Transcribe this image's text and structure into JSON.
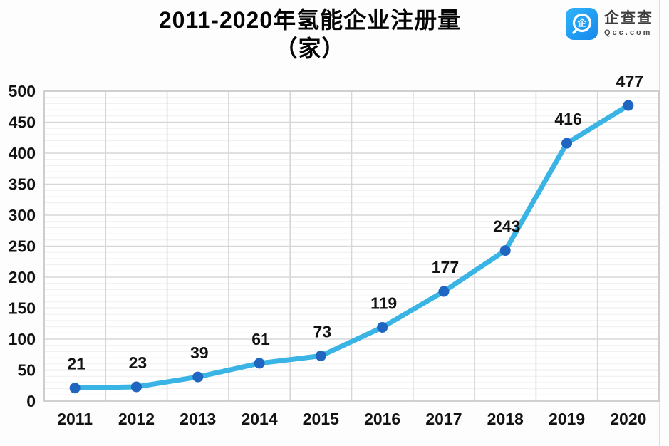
{
  "title": {
    "line1": "2011-2020年氢能企业注册量",
    "line2": "（家）"
  },
  "logo": {
    "name": "企查查",
    "domain": "Qcc.com",
    "icon": "qcc-magnifier-icon",
    "icon_glyph": "企",
    "brand_color": "#1f9ef3"
  },
  "chart_data": {
    "type": "line",
    "title": "2011-2020年氢能企业注册量（家）",
    "categories": [
      "2011",
      "2012",
      "2013",
      "2014",
      "2015",
      "2016",
      "2017",
      "2018",
      "2019",
      "2020"
    ],
    "values": [
      21,
      23,
      39,
      61,
      73,
      119,
      177,
      243,
      416,
      477
    ],
    "xlabel": "",
    "ylabel": "",
    "ylim": [
      0,
      500
    ],
    "y_ticks": [
      0,
      50,
      100,
      150,
      200,
      250,
      300,
      350,
      400,
      450,
      500
    ],
    "y_tick_step": 50,
    "y_minor_step": 10,
    "grid": true,
    "legend": "none",
    "line_color": "#3ab4e4",
    "marker_color": "#2066c0",
    "major_grid_color": "#d7d7d7",
    "minor_grid_color": "#efefef",
    "plot_border_color": "#c9c9c9",
    "label_color": "#121212",
    "label_offset": [
      2,
      -34
    ]
  }
}
